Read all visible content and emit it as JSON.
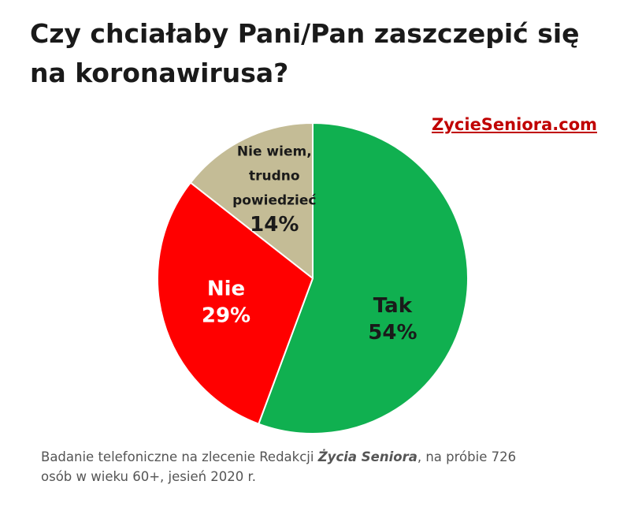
{
  "title_line1": "Czy chciałaby Pani/Pan zaszczepić się",
  "title_line2": "na koronawirusa?",
  "brand": "ZycieSeniora.com",
  "footnote": {
    "prefix": "Badanie telefoniczne na zlecenie Redakcji ",
    "emphasis": "Życia Seniora",
    "suffix": ", na próbie 726",
    "line2": "osób w wieku 60+, jesień 2020 r."
  },
  "chart_data": {
    "type": "pie",
    "title": "Czy chciałaby Pani/Pan zaszczepić się na koronawirusa?",
    "categories": [
      "Tak",
      "Nie",
      "Nie wiem, trudno powiedzieć"
    ],
    "values": [
      54,
      29,
      14
    ],
    "unit": "%",
    "slices": [
      {
        "label_lines": [
          "Tak"
        ],
        "value": 54,
        "value_label": "54%",
        "color": "#10b050",
        "label_color": "#1a1a1a"
      },
      {
        "label_lines": [
          "Nie"
        ],
        "value": 29,
        "value_label": "29%",
        "color": "#ff0000",
        "label_color": "#ffffff"
      },
      {
        "label_lines": [
          "Nie wiem,",
          "trudno",
          "powiedzieć"
        ],
        "value": 14,
        "value_label": "14%",
        "color": "#c4bc96",
        "label_color": "#1a1a1a"
      }
    ],
    "legend": "none",
    "start_direction": "top",
    "clockwise": true,
    "slice_border_color": "#ffffff"
  }
}
